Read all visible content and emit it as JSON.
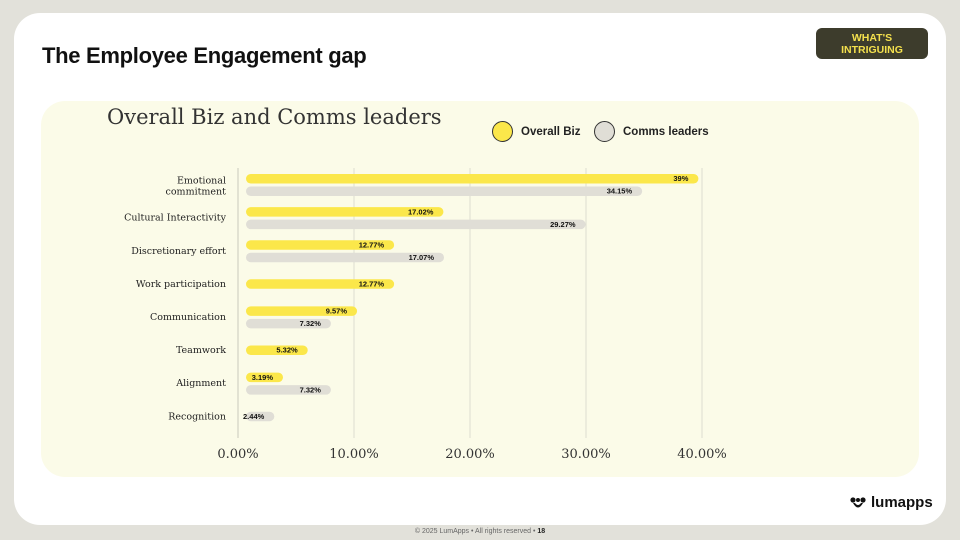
{
  "slide": {
    "title": "The Employee Engagement gap",
    "badge": "WHAT'S INTRIGUING"
  },
  "footer": {
    "text": "© 2025 LumApps • All rights reserved •",
    "page": "18"
  },
  "logo": {
    "text": "lumapps"
  },
  "colors": {
    "overall_biz": "#fbe74a",
    "comms_leaders": "#e0ded6",
    "panel": "#fbfbe8"
  },
  "chart_data": {
    "type": "bar",
    "orientation": "horizontal",
    "title": "Overall Biz and Comms leaders",
    "categories": [
      "Emotional commitment",
      "Cultural Interactivity",
      "Discretionary effort",
      "Work participation",
      "Communication",
      "Teamwork",
      "Alignment",
      "Recognition"
    ],
    "series": [
      {
        "name": "Overall Biz",
        "values": [
          39,
          17.02,
          12.77,
          12.77,
          9.57,
          5.32,
          3.19,
          null
        ],
        "labels": [
          "39%",
          "17.02%",
          "12.77%",
          "12.77%",
          "9.57%",
          "5.32%",
          "3.19%",
          null
        ]
      },
      {
        "name": "Comms leaders",
        "values": [
          34.15,
          29.27,
          17.07,
          null,
          7.32,
          null,
          7.32,
          2.44
        ],
        "labels": [
          "34.15%",
          "29.27%",
          "17.07%",
          null,
          "7.32%",
          null,
          "7.32%",
          "2.44%"
        ]
      }
    ],
    "xlim": [
      0,
      40
    ],
    "xticks": [
      0,
      10,
      20,
      30,
      40
    ],
    "xtick_labels": [
      "0.00%",
      "10.00%",
      "20.00%",
      "30.00%",
      "40.00%"
    ],
    "grid": true,
    "legend": "top-right"
  }
}
